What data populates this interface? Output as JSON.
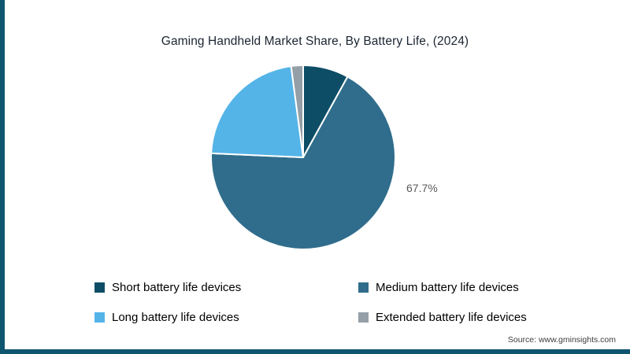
{
  "accent_color": "#0e5570",
  "source": "Source: www.gminsights.com",
  "chart_data": {
    "type": "pie",
    "title": "Gaming Handheld Market Share, By Battery Life, (2024)",
    "categories": [
      "Short battery life devices",
      "Medium battery life devices",
      "Long battery life devices",
      "Extended battery life devices"
    ],
    "values": [
      8.0,
      67.7,
      22.2,
      2.1
    ],
    "colors": [
      "#0d4d66",
      "#306d8c",
      "#54b4e8",
      "#959fa7"
    ],
    "value_label": "67.7%",
    "labeled_slice": "Medium battery life devices",
    "start_angle_deg": 0,
    "direction": "clockwise",
    "legend_position": "bottom",
    "slice_border_color": "#ffffff"
  }
}
